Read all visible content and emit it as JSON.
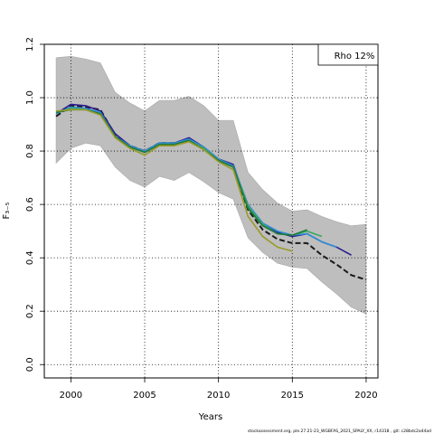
{
  "chart_data": {
    "type": "line",
    "title": "",
    "xlabel": "Years",
    "ylabel": "F₃₋₅",
    "xlim": [
      1998.2,
      2020.8
    ],
    "ylim": [
      -0.05,
      1.2
    ],
    "x_ticks": [
      2000,
      2005,
      2010,
      2015,
      2020
    ],
    "x_tick_labels": [
      "2000",
      "2005",
      "2010",
      "2015",
      "2020"
    ],
    "y_ticks": [
      0.0,
      0.2,
      0.4,
      0.6,
      0.8,
      1.0,
      1.2
    ],
    "y_tick_labels": [
      "0.0",
      "0.2",
      "0.4",
      "0.6",
      "0.8",
      "1.0",
      "1.2"
    ],
    "grid": true,
    "legend": {
      "text": "Rho 12%",
      "position": "top-right"
    },
    "confidence_band": {
      "x": [
        1999,
        2000,
        2001,
        2002,
        2003,
        2004,
        2005,
        2006,
        2007,
        2008,
        2009,
        2010,
        2011,
        2012,
        2013,
        2014,
        2015,
        2016,
        2017,
        2018,
        2019,
        2020
      ],
      "upper": [
        1.15,
        1.155,
        1.145,
        1.13,
        1.02,
        0.98,
        0.95,
        0.99,
        0.99,
        1.005,
        0.97,
        0.915,
        0.915,
        0.72,
        0.655,
        0.605,
        0.575,
        0.58,
        0.555,
        0.535,
        0.52,
        0.525
      ],
      "lower": [
        0.755,
        0.81,
        0.83,
        0.82,
        0.74,
        0.69,
        0.665,
        0.705,
        0.69,
        0.72,
        0.685,
        0.645,
        0.62,
        0.475,
        0.42,
        0.38,
        0.365,
        0.36,
        0.31,
        0.265,
        0.215,
        0.19
      ]
    },
    "series": [
      {
        "color": "#1a1a1a",
        "dash": true,
        "x": [
          1999,
          2000,
          2001,
          2002,
          2003,
          2004,
          2005,
          2006,
          2007,
          2008,
          2009,
          2010,
          2011,
          2012,
          2013,
          2014,
          2015,
          2016,
          2017,
          2018,
          2019,
          2020
        ],
        "values": [
          0.93,
          0.97,
          0.965,
          0.955,
          0.86,
          0.82,
          0.8,
          0.83,
          0.83,
          0.845,
          0.81,
          0.765,
          0.745,
          0.58,
          0.505,
          0.47,
          0.455,
          0.455,
          0.41,
          0.375,
          0.335,
          0.318
        ]
      },
      {
        "color": "#2b1d8f",
        "dash": false,
        "x": [
          1999,
          2000,
          2001,
          2002,
          2003,
          2004,
          2005,
          2006,
          2007,
          2008,
          2009,
          2010,
          2011,
          2012,
          2013,
          2014,
          2015,
          2016,
          2017,
          2018,
          2019
        ],
        "values": [
          0.94,
          0.975,
          0.97,
          0.95,
          0.865,
          0.82,
          0.8,
          0.83,
          0.83,
          0.85,
          0.815,
          0.77,
          0.75,
          0.59,
          0.525,
          0.495,
          0.48,
          0.49,
          0.46,
          0.44,
          0.41
        ]
      },
      {
        "color": "#2f8fd8",
        "dash": false,
        "x": [
          1999,
          2000,
          2001,
          2002,
          2003,
          2004,
          2005,
          2006,
          2007,
          2008,
          2009,
          2010,
          2011,
          2012,
          2013,
          2014,
          2015,
          2016,
          2017,
          2018
        ],
        "values": [
          0.94,
          0.965,
          0.96,
          0.945,
          0.855,
          0.82,
          0.8,
          0.83,
          0.83,
          0.845,
          0.815,
          0.77,
          0.745,
          0.6,
          0.53,
          0.5,
          0.485,
          0.49,
          0.46,
          0.44
        ]
      },
      {
        "color": "#3aa860",
        "dash": false,
        "x": [
          1999,
          2000,
          2001,
          2002,
          2003,
          2004,
          2005,
          2006,
          2007,
          2008,
          2009,
          2010,
          2011,
          2012,
          2013,
          2014,
          2015,
          2016,
          2017
        ],
        "values": [
          0.945,
          0.96,
          0.955,
          0.94,
          0.855,
          0.815,
          0.795,
          0.825,
          0.825,
          0.84,
          0.81,
          0.765,
          0.74,
          0.595,
          0.525,
          0.49,
          0.485,
          0.5,
          0.48
        ]
      },
      {
        "color": "#1e7a3c",
        "dash": false,
        "x": [
          1999,
          2000,
          2001,
          2002,
          2003,
          2004,
          2005,
          2006,
          2007,
          2008,
          2009,
          2010,
          2011,
          2012,
          2013,
          2014,
          2015,
          2016
        ],
        "values": [
          0.945,
          0.955,
          0.955,
          0.94,
          0.855,
          0.815,
          0.795,
          0.825,
          0.825,
          0.84,
          0.805,
          0.765,
          0.74,
          0.585,
          0.52,
          0.49,
          0.485,
          0.505
        ]
      },
      {
        "color": "#9a9a2a",
        "dash": false,
        "x": [
          1999,
          2000,
          2001,
          2002,
          2003,
          2004,
          2005,
          2006,
          2007,
          2008,
          2009,
          2010,
          2011,
          2012,
          2013,
          2014,
          2015
        ],
        "values": [
          0.95,
          0.955,
          0.955,
          0.935,
          0.85,
          0.81,
          0.785,
          0.82,
          0.82,
          0.835,
          0.805,
          0.76,
          0.73,
          0.555,
          0.48,
          0.44,
          0.425
        ]
      }
    ]
  },
  "footer": "stockassessment.org, ple.27.21-23_WGBFAS_2021_SPALY_XX, r14318 , git: c28bdc2a44ad"
}
